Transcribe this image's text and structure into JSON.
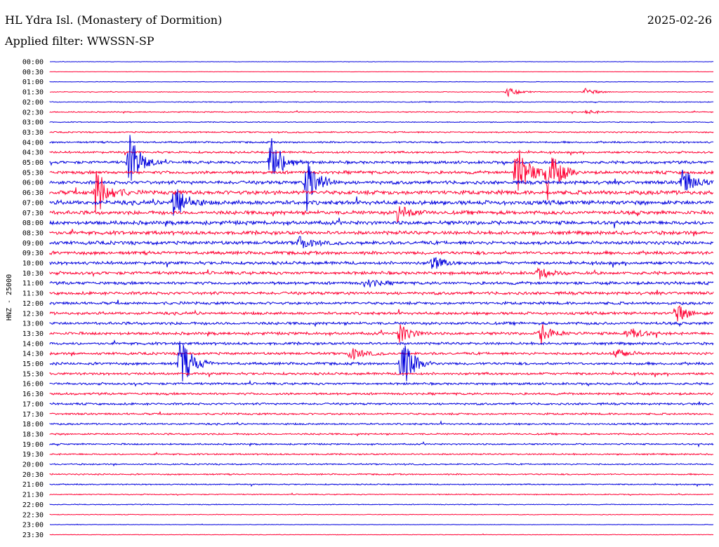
{
  "header": {
    "station": "HL Ydra Isl. (Monastery of Dormition)",
    "date": "2025-02-26",
    "filter": "Applied filter: WWSSN-SP"
  },
  "chart_data": {
    "type": "line",
    "ylabel": "HNZ - 25000",
    "row_labels": [
      "00:00",
      "00:30",
      "01:00",
      "01:30",
      "02:00",
      "02:30",
      "03:00",
      "03:30",
      "04:00",
      "04:30",
      "05:00",
      "05:30",
      "06:00",
      "06:30",
      "07:00",
      "07:30",
      "08:00",
      "08:30",
      "09:00",
      "09:30",
      "10:00",
      "10:30",
      "11:00",
      "11:30",
      "12:00",
      "12:30",
      "13:00",
      "13:30",
      "14:00",
      "14:30",
      "15:00",
      "15:30",
      "16:00",
      "16:30",
      "17:00",
      "17:30",
      "18:00",
      "18:30",
      "19:00",
      "19:30",
      "20:00",
      "20:30",
      "21:00",
      "21:30",
      "22:00",
      "22:30",
      "23:00",
      "23:30"
    ],
    "series_colors": [
      "#0000dd",
      "#ff0033"
    ],
    "noise_level": [
      0.2,
      0.2,
      0.3,
      0.4,
      0.5,
      0.6,
      0.5,
      0.8,
      1.0,
      1.2,
      1.6,
      1.8,
      2.0,
      2.4,
      2.4,
      2.2,
      2.2,
      2.1,
      2.0,
      1.9,
      1.8,
      1.8,
      1.7,
      1.7,
      1.6,
      1.6,
      1.6,
      1.6,
      1.5,
      1.5,
      1.5,
      1.4,
      1.3,
      1.3,
      1.2,
      1.1,
      1.0,
      1.0,
      0.9,
      0.9,
      0.8,
      0.8,
      0.7,
      0.6,
      0.5,
      0.4,
      0.3,
      0.3
    ],
    "events": [
      {
        "row": 3,
        "minute": 20.6,
        "amp": 6
      },
      {
        "row": 3,
        "minute": 24.1,
        "amp": 5
      },
      {
        "row": 5,
        "minute": 24.2,
        "amp": 3
      },
      {
        "row": 10,
        "minute": 3.5,
        "amp": 40
      },
      {
        "row": 10,
        "minute": 9.9,
        "amp": 38
      },
      {
        "row": 12,
        "minute": 11.5,
        "amp": 42
      },
      {
        "row": 11,
        "minute": 21.0,
        "amp": 45
      },
      {
        "row": 11,
        "minute": 22.4,
        "amp": 40
      },
      {
        "row": 12,
        "minute": 28.5,
        "amp": 22
      },
      {
        "row": 13,
        "minute": 2.0,
        "amp": 35
      },
      {
        "row": 14,
        "minute": 5.5,
        "amp": 30
      },
      {
        "row": 15,
        "minute": 15.6,
        "amp": 14
      },
      {
        "row": 18,
        "minute": 11.2,
        "amp": 10
      },
      {
        "row": 20,
        "minute": 17.2,
        "amp": 10
      },
      {
        "row": 21,
        "minute": 22.0,
        "amp": 8
      },
      {
        "row": 22,
        "minute": 14.2,
        "amp": 8
      },
      {
        "row": 25,
        "minute": 28.2,
        "amp": 14
      },
      {
        "row": 27,
        "minute": 22.1,
        "amp": 15
      },
      {
        "row": 27,
        "minute": 26.0,
        "amp": 12
      },
      {
        "row": 27,
        "minute": 15.7,
        "amp": 14
      },
      {
        "row": 30,
        "minute": 5.8,
        "amp": 38
      },
      {
        "row": 30,
        "minute": 15.8,
        "amp": 40
      },
      {
        "row": 29,
        "minute": 13.5,
        "amp": 10
      },
      {
        "row": 29,
        "minute": 25.5,
        "amp": 8
      }
    ]
  }
}
